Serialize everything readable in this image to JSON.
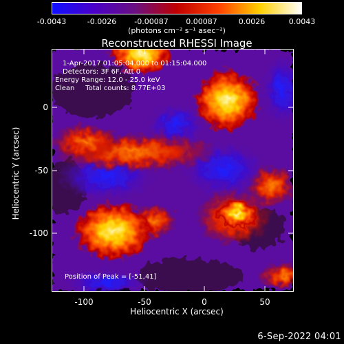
{
  "colorbar": {
    "ticks": [
      "-0.0043",
      "-0.0026",
      "-0.00087",
      "0.00087",
      "0.0026",
      "0.0043"
    ],
    "units": "(photons cm⁻² s⁻¹ asec⁻²)",
    "colors": [
      "#1010ff",
      "#4a00c8",
      "#6a1080",
      "#c00000",
      "#ff4000",
      "#ffd000",
      "#ffffff"
    ]
  },
  "title": "Reconstructed RHESSI Image",
  "annotations": {
    "line1": "1-Apr-2017 01:05:04.000 to 01:15:04.000",
    "line2": "Detectors: 3F 6F, Att 0",
    "line3": "Energy Range: 12.0 - 25.0 keV",
    "line4": "Clean     Total counts: 8.77E+03",
    "peak": "Position of Peak = [-51,41]"
  },
  "axes": {
    "xlabel": "Heliocentric X (arcsec)",
    "ylabel": "Heliocentric Y (arcsec)",
    "xticks": [
      "-100",
      "-50",
      "0",
      "50"
    ],
    "yticks": [
      "0",
      "-50",
      "-100"
    ]
  },
  "footer": "6-Sep-2022 04:01"
}
